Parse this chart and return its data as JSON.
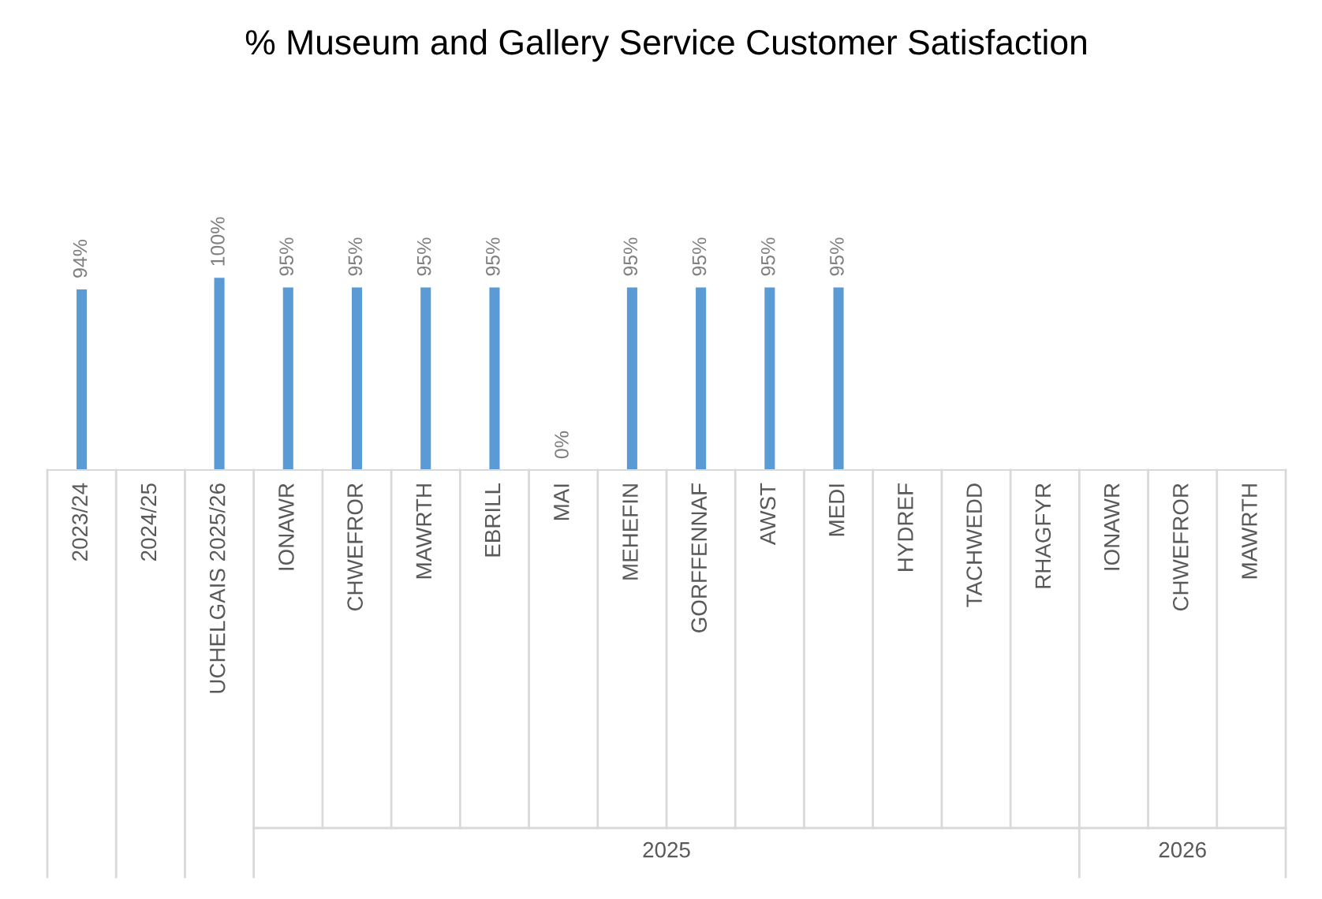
{
  "chart_data": {
    "type": "bar",
    "title": "% Museum and Gallery Service Customer Satisfaction",
    "categories": [
      "2023/24",
      "2024/25",
      "UCHELGAIS 2025/26",
      "IONAWR",
      "CHWEFROR",
      "MAWRTH",
      "EBRILL",
      "MAI",
      "MEHEFIN",
      "GORFFENNAF",
      "AWST",
      "MEDI",
      "HYDREF",
      "TACHWEDD",
      "RHAGFYR",
      "IONAWR",
      "CHWEFROR",
      "MAWRTH"
    ],
    "values": [
      94,
      null,
      100,
      95,
      95,
      95,
      95,
      0,
      95,
      95,
      95,
      95,
      null,
      null,
      null,
      null,
      null,
      null
    ],
    "value_labels": [
      "94%",
      null,
      "100%",
      "95%",
      "95%",
      "95%",
      "95%",
      "0%",
      "95%",
      "95%",
      "95%",
      "95%",
      null,
      null,
      null,
      null,
      null,
      null
    ],
    "color": "#5b9bd5",
    "annotations": [
      "2025",
      "2026"
    ]
  }
}
